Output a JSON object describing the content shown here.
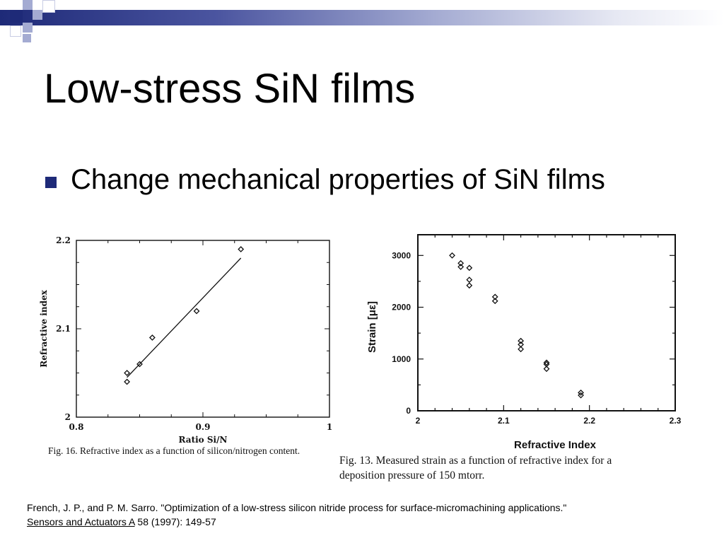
{
  "slide": {
    "title": "Low-stress SiN films",
    "bullet": "Change mechanical properties of SiN films",
    "reference_line1": "French, J. P., and P. M. Sarro. \"Optimization of a low-stress silicon nitride process for surface-micromachining applications.\"",
    "reference_journal": "Sensors and Actuators A",
    "reference_rest": " 58 (1997): 149-57"
  },
  "colors": {
    "accent": "#1e2a78",
    "deco_light": "#a4abd2"
  },
  "chart_data": [
    {
      "type": "scatter",
      "title": "",
      "xlabel": "Ratio Si/N",
      "ylabel": "Refractive index",
      "xlim": [
        0.8,
        1.0
      ],
      "ylim": [
        2.0,
        2.2
      ],
      "xticks": [
        "0.8",
        "0.9",
        "1"
      ],
      "yticks": [
        "2",
        "2.1",
        "2.2"
      ],
      "grid": false,
      "caption": "Fig. 16. Refractive index as a function of silicon/nitrogen content.",
      "series": [
        {
          "points": [
            [
              0.84,
              2.04
            ],
            [
              0.84,
              2.05
            ],
            [
              0.85,
              2.06
            ],
            [
              0.86,
              2.09
            ],
            [
              0.895,
              2.12
            ],
            [
              0.93,
              2.19
            ]
          ]
        }
      ],
      "fit_line": [
        [
          0.84,
          2.045
        ],
        [
          0.93,
          2.18
        ]
      ]
    },
    {
      "type": "scatter",
      "title": "",
      "xlabel": "Refractive  Index",
      "ylabel": "Strain  [με]",
      "xlim": [
        2.0,
        2.3
      ],
      "ylim": [
        0,
        3400
      ],
      "xticks": [
        "2",
        "2.1",
        "2.2",
        "2.3"
      ],
      "yticks": [
        "0",
        "1000",
        "2000",
        "3000"
      ],
      "grid": false,
      "caption": "Fig. 13. Measured strain as a function of refractive index for a deposition pressure of 150 mtorr.",
      "series": [
        {
          "points": [
            [
              2.04,
              3000
            ],
            [
              2.05,
              2850
            ],
            [
              2.05,
              2780
            ],
            [
              2.06,
              2760
            ],
            [
              2.06,
              2530
            ],
            [
              2.06,
              2420
            ],
            [
              2.09,
              2200
            ],
            [
              2.09,
              2120
            ],
            [
              2.12,
              1350
            ],
            [
              2.12,
              1280
            ],
            [
              2.12,
              1190
            ],
            [
              2.15,
              930
            ],
            [
              2.15,
              900
            ],
            [
              2.15,
              810
            ],
            [
              2.19,
              350
            ],
            [
              2.19,
              300
            ]
          ]
        }
      ]
    }
  ]
}
